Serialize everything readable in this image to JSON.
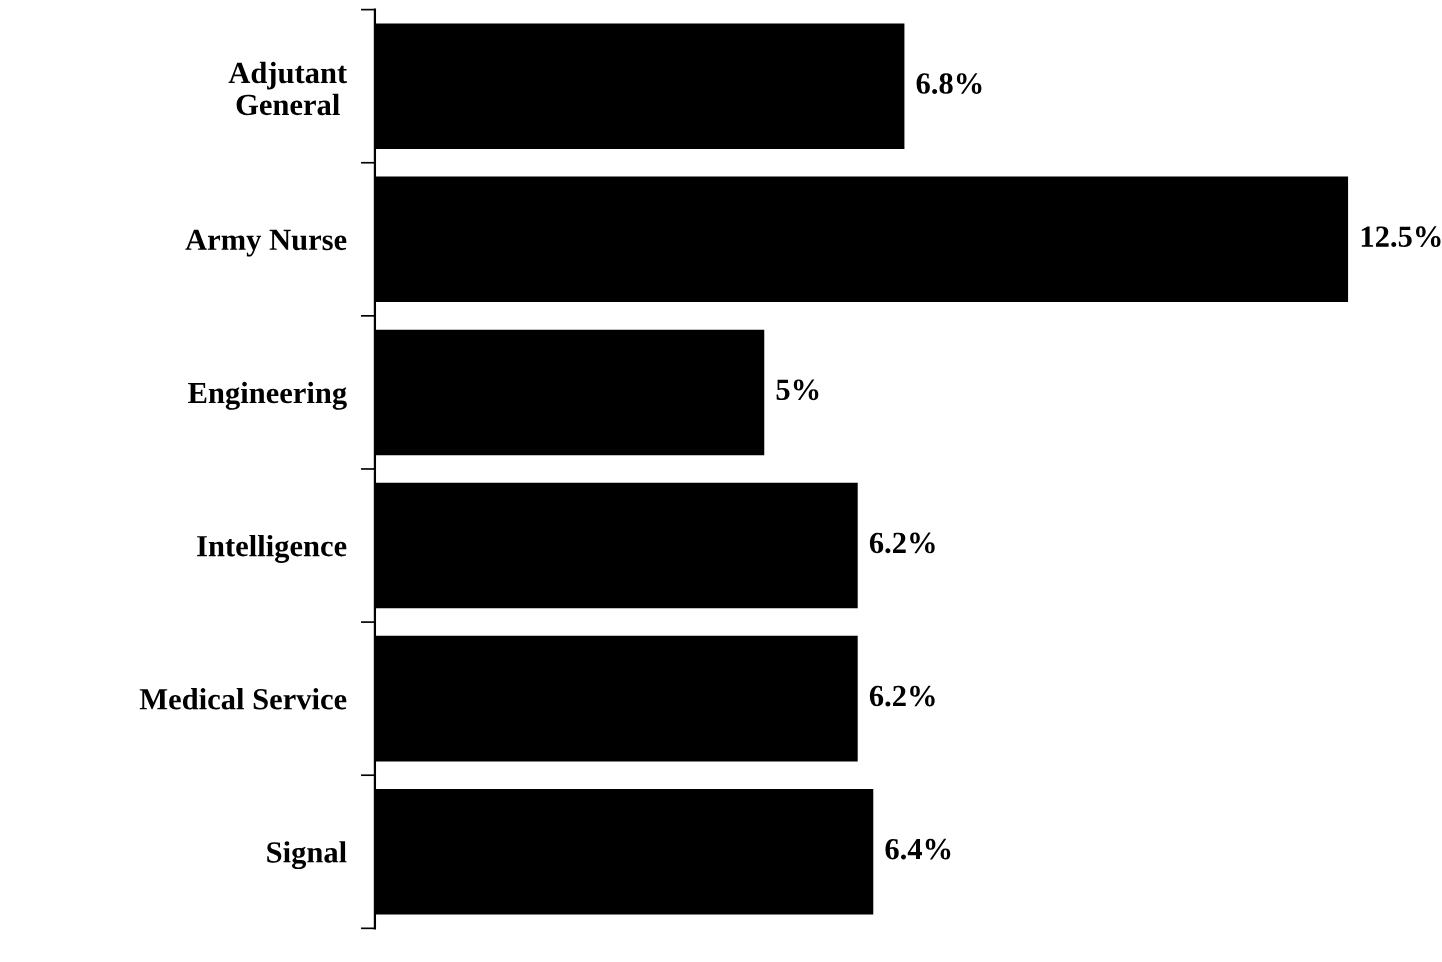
{
  "chart_data": {
    "type": "bar",
    "orientation": "horizontal",
    "categories": [
      "Adjutant\nGeneral",
      "Army Nurse",
      "Engineering",
      "Intelligence",
      "Medical Service",
      "Signal"
    ],
    "values": [
      6.8,
      12.5,
      5,
      6.2,
      6.2,
      6.4
    ],
    "value_labels": [
      "6.8%",
      "12.5%",
      "5%",
      "6.2%",
      "6.2%",
      "6.4%"
    ],
    "color": "#000000",
    "grid": false
  }
}
